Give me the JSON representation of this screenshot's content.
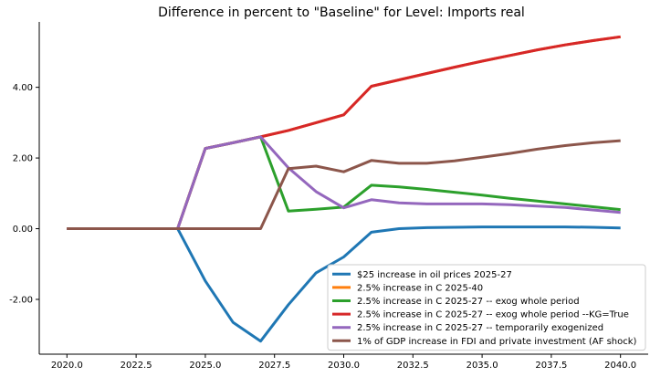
{
  "chart_data": {
    "type": "line",
    "title": "Difference in percent to \"Baseline\" for Level: Imports real",
    "xlabel": "",
    "ylabel": "",
    "x": [
      2020,
      2021,
      2022,
      2023,
      2024,
      2025,
      2026,
      2027,
      2028,
      2029,
      2030,
      2031,
      2032,
      2033,
      2034,
      2035,
      2036,
      2037,
      2038,
      2039,
      2040
    ],
    "xlim": [
      2019.0,
      2041.0
    ],
    "ylim": [
      -3.55,
      5.85
    ],
    "xticks": [
      2020.0,
      2022.5,
      2025.0,
      2027.5,
      2030.0,
      2032.5,
      2035.0,
      2037.5,
      2040.0
    ],
    "xtick_labels": [
      "2020.0",
      "2022.5",
      "2025.0",
      "2027.5",
      "2030.0",
      "2032.5",
      "2035.0",
      "2037.5",
      "2040.0"
    ],
    "yticks": [
      -2.0,
      0.0,
      2.0,
      4.0
    ],
    "ytick_labels": [
      "-2.00",
      "0.00",
      "2.00",
      "4.00"
    ],
    "grid": false,
    "legend_position": "lower-right",
    "series": [
      {
        "name": "$25 increase in oil prices 2025-27",
        "color": "#1f77b4",
        "values": [
          0,
          0,
          0,
          0,
          0,
          -1.48,
          -2.65,
          -3.18,
          -2.15,
          -1.25,
          -0.8,
          -0.1,
          0,
          0.03,
          0.04,
          0.05,
          0.05,
          0.05,
          0.05,
          0.04,
          0.02
        ]
      },
      {
        "name": "2.5% increase in C 2025-40",
        "color": "#ff7f0e",
        "values": [
          0,
          0,
          0,
          0,
          0,
          2.27,
          2.43,
          2.6,
          2.78,
          3.0,
          3.22,
          4.03,
          4.21,
          4.39,
          4.57,
          4.74,
          4.9,
          5.06,
          5.2,
          5.32,
          5.43
        ]
      },
      {
        "name": "2.5% increase in C 2025-27 -- exog whole period",
        "color": "#2ca02c",
        "values": [
          0,
          0,
          0,
          0,
          0,
          2.27,
          2.43,
          2.6,
          0.5,
          0.55,
          0.61,
          1.23,
          1.18,
          1.11,
          1.03,
          0.95,
          0.86,
          0.78,
          0.7,
          0.62,
          0.54
        ]
      },
      {
        "name": "2.5% increase in C 2025-27 -- exog whole period --KG=True",
        "color": "#d62728",
        "values": [
          0,
          0,
          0,
          0,
          0,
          2.27,
          2.43,
          2.6,
          2.78,
          3.0,
          3.22,
          4.03,
          4.21,
          4.39,
          4.57,
          4.74,
          4.9,
          5.06,
          5.2,
          5.32,
          5.43
        ]
      },
      {
        "name": "2.5% increase in C 2025-27 -- temporarily exogenized",
        "color": "#9467bd",
        "values": [
          0,
          0,
          0,
          0,
          0,
          2.27,
          2.43,
          2.6,
          1.72,
          1.05,
          0.59,
          0.82,
          0.73,
          0.7,
          0.7,
          0.7,
          0.68,
          0.64,
          0.6,
          0.53,
          0.46
        ]
      },
      {
        "name": "1% of GDP increase in FDI and private investment (AF shock)",
        "color": "#8c564b",
        "values": [
          0,
          0,
          0,
          0,
          0,
          0,
          0,
          0,
          1.7,
          1.77,
          1.61,
          1.93,
          1.85,
          1.85,
          1.92,
          2.02,
          2.13,
          2.25,
          2.35,
          2.43,
          2.49
        ]
      }
    ]
  }
}
